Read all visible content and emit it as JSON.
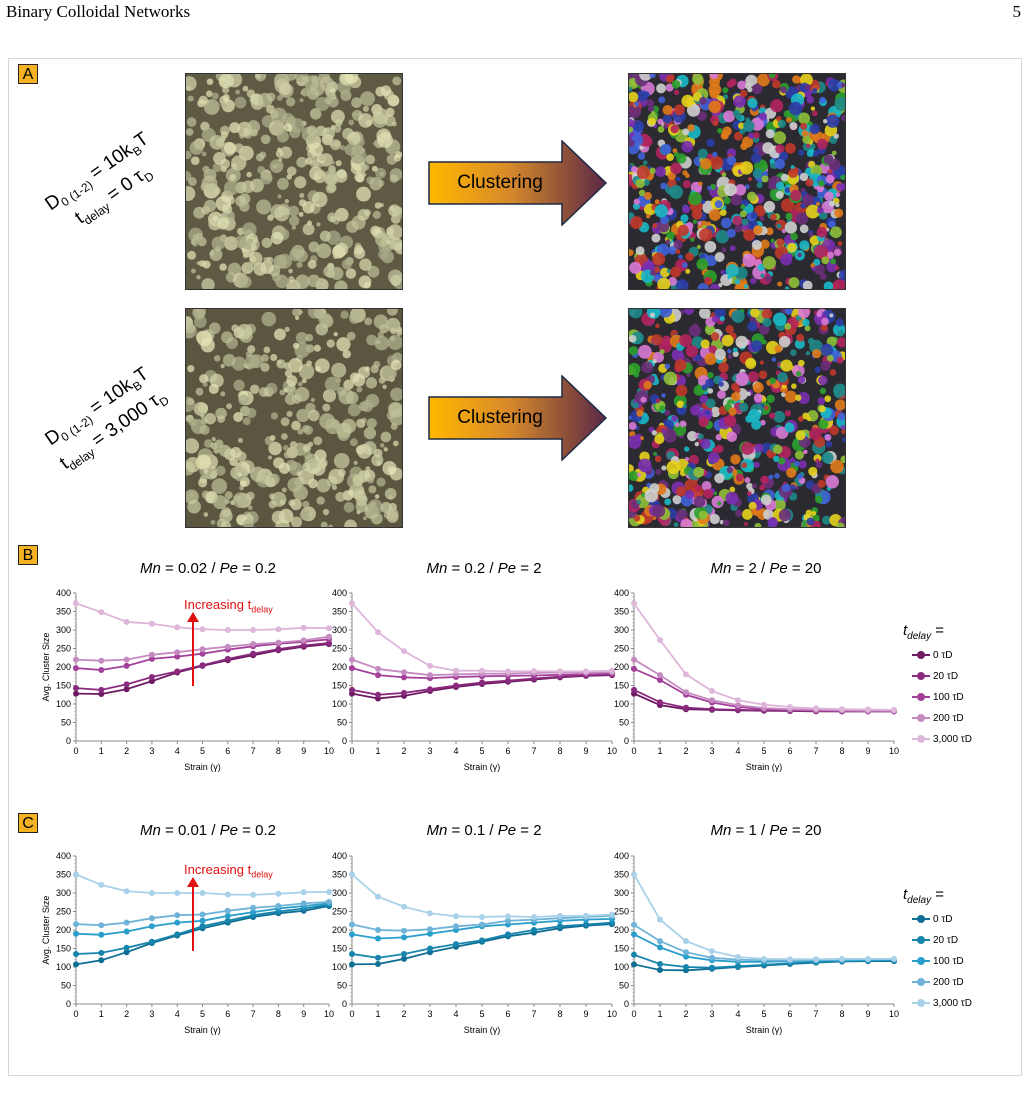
{
  "header": {
    "title": "Binary Colloidal Networks",
    "page": "5"
  },
  "panels": {
    "a": "A",
    "b": "B",
    "c": "C"
  },
  "panel_a": {
    "clustering_label": "Clustering",
    "rows": [
      {
        "line1": "D",
        "line1_sub": "0 (1-2)",
        "line1_rest": " = 10k",
        "line1_sub2": "B",
        "line1_end": "T",
        "line2": "t",
        "line2_sub": "delay",
        "line2_rest": " = 0 τ",
        "line2_sub2": "D"
      },
      {
        "line1": "D",
        "line1_sub": "0 (1-2)",
        "line1_rest": " = 10k",
        "line1_sub2": "B",
        "line1_end": "T",
        "line2": "t",
        "line2_sub": "delay",
        "line2_rest": " = 3,000 τ",
        "line2_sub2": "D"
      }
    ]
  },
  "annotation": {
    "text": "Increasing t",
    "sub": "delay"
  },
  "legend": {
    "title": "t",
    "title_sub": "delay",
    "title_rest": " =",
    "labels": [
      "0 τD",
      "20 τD",
      "100 τD",
      "200 τD",
      "3,000 τD"
    ]
  },
  "colors": {
    "panel_b": [
      "#6e1a63",
      "#8a2a7e",
      "#a3409a",
      "#c58bc0",
      "#ddb6da"
    ],
    "panel_c": [
      "#0e6e94",
      "#1784ac",
      "#2a9fcb",
      "#6fb3d8",
      "#a9d2ea"
    ],
    "accent": "#f4b223",
    "annotation": "#e01010"
  },
  "chart_data": [
    {
      "panel": "B",
      "type": "line",
      "title_left": "Mn",
      "title_mid": " = 0.02 / ",
      "title_pe": "Pe",
      "title_right": " = 0.2",
      "xlabel": "Strain (γ)",
      "ylabel": "Avg. Cluster Size",
      "xlim": [
        0,
        10
      ],
      "ylim": [
        0,
        400
      ],
      "x": [
        0,
        1,
        2,
        3,
        4,
        5,
        6,
        7,
        8,
        9,
        10
      ],
      "series": [
        {
          "name": "0 τD",
          "values": [
            128,
            127,
            140,
            162,
            185,
            203,
            218,
            232,
            245,
            255,
            262
          ]
        },
        {
          "name": "20 τD",
          "values": [
            143,
            138,
            153,
            173,
            188,
            205,
            222,
            236,
            248,
            258,
            265
          ]
        },
        {
          "name": "100 τD",
          "values": [
            197,
            192,
            203,
            222,
            228,
            236,
            247,
            256,
            263,
            268,
            275
          ]
        },
        {
          "name": "200 τD",
          "values": [
            220,
            217,
            220,
            233,
            240,
            248,
            255,
            262,
            266,
            272,
            282
          ]
        },
        {
          "name": "3,000 τD",
          "values": [
            372,
            348,
            322,
            317,
            307,
            302,
            300,
            300,
            302,
            306,
            305
          ]
        }
      ]
    },
    {
      "panel": "B",
      "type": "line",
      "title_left": "Mn",
      "title_mid": " = 0.2 / ",
      "title_pe": "Pe",
      "title_right": " = 2",
      "xlabel": "Strain (γ)",
      "ylabel": "",
      "xlim": [
        0,
        10
      ],
      "ylim": [
        0,
        400
      ],
      "x": [
        0,
        1,
        2,
        3,
        4,
        5,
        6,
        7,
        8,
        9,
        10
      ],
      "series": [
        {
          "name": "0 τD",
          "values": [
            128,
            115,
            122,
            135,
            146,
            154,
            160,
            166,
            172,
            176,
            178
          ]
        },
        {
          "name": "20 τD",
          "values": [
            138,
            125,
            130,
            140,
            150,
            158,
            163,
            169,
            174,
            178,
            180
          ]
        },
        {
          "name": "100 τD",
          "values": [
            197,
            178,
            172,
            170,
            173,
            175,
            176,
            177,
            179,
            180,
            182
          ]
        },
        {
          "name": "200 τD",
          "values": [
            220,
            195,
            186,
            178,
            180,
            182,
            182,
            184,
            185,
            185,
            186
          ]
        },
        {
          "name": "3,000 τD",
          "values": [
            372,
            294,
            243,
            203,
            190,
            190,
            188,
            189,
            188,
            188,
            190
          ]
        }
      ]
    },
    {
      "panel": "B",
      "type": "line",
      "title_left": "Mn",
      "title_mid": " = 2 / ",
      "title_pe": "Pe",
      "title_right": " = 20",
      "xlabel": "Strain (γ)",
      "ylabel": "",
      "xlim": [
        0,
        10
      ],
      "ylim": [
        0,
        400
      ],
      "x": [
        0,
        1,
        2,
        3,
        4,
        5,
        6,
        7,
        8,
        9,
        10
      ],
      "series": [
        {
          "name": "0 τD",
          "values": [
            128,
            97,
            86,
            84,
            83,
            82,
            81,
            80,
            80,
            80,
            80
          ]
        },
        {
          "name": "20 τD",
          "values": [
            138,
            105,
            90,
            86,
            84,
            83,
            82,
            81,
            80,
            80,
            80
          ]
        },
        {
          "name": "100 τD",
          "values": [
            195,
            165,
            125,
            104,
            92,
            86,
            84,
            82,
            81,
            81,
            81
          ]
        },
        {
          "name": "200 τD",
          "values": [
            220,
            178,
            132,
            110,
            97,
            89,
            86,
            84,
            83,
            82,
            82
          ]
        },
        {
          "name": "3,000 τD",
          "values": [
            372,
            273,
            180,
            135,
            110,
            98,
            92,
            88,
            86,
            85,
            84
          ]
        }
      ]
    },
    {
      "panel": "C",
      "type": "line",
      "title_left": "Mn",
      "title_mid": " = 0.01 / ",
      "title_pe": "Pe",
      "title_right": " = 0.2",
      "xlabel": "Strain (γ)",
      "ylabel": "Avg. Cluster Size",
      "xlim": [
        0,
        10
      ],
      "ylim": [
        0,
        400
      ],
      "x": [
        0,
        1,
        2,
        3,
        4,
        5,
        6,
        7,
        8,
        9,
        10
      ],
      "series": [
        {
          "name": "0 τD",
          "values": [
            107,
            118,
            140,
            165,
            185,
            205,
            220,
            235,
            245,
            252,
            265
          ]
        },
        {
          "name": "20 τD",
          "values": [
            135,
            138,
            152,
            168,
            188,
            210,
            225,
            240,
            250,
            258,
            268
          ]
        },
        {
          "name": "100 τD",
          "values": [
            190,
            187,
            196,
            210,
            220,
            225,
            238,
            248,
            258,
            265,
            272
          ]
        },
        {
          "name": "200 τD",
          "values": [
            216,
            213,
            220,
            232,
            240,
            242,
            252,
            260,
            265,
            272,
            276
          ]
        },
        {
          "name": "3,000 τD",
          "values": [
            350,
            322,
            305,
            300,
            300,
            300,
            296,
            295,
            298,
            302,
            303
          ]
        }
      ]
    },
    {
      "panel": "C",
      "type": "line",
      "title_left": "Mn",
      "title_mid": " = 0.1 / ",
      "title_pe": "Pe",
      "title_right": " = 2",
      "xlabel": "Strain (γ)",
      "ylabel": "",
      "xlim": [
        0,
        10
      ],
      "ylim": [
        0,
        400
      ],
      "x": [
        0,
        1,
        2,
        3,
        4,
        5,
        6,
        7,
        8,
        9,
        10
      ],
      "series": [
        {
          "name": "0 τD",
          "values": [
            107,
            108,
            122,
            140,
            155,
            168,
            183,
            193,
            205,
            212,
            216
          ]
        },
        {
          "name": "20 τD",
          "values": [
            135,
            125,
            135,
            150,
            162,
            172,
            188,
            200,
            210,
            215,
            220
          ]
        },
        {
          "name": "100 τD",
          "values": [
            188,
            177,
            180,
            190,
            200,
            210,
            215,
            220,
            225,
            228,
            230
          ]
        },
        {
          "name": "200 τD",
          "values": [
            215,
            200,
            198,
            202,
            210,
            215,
            225,
            228,
            232,
            235,
            238
          ]
        },
        {
          "name": "3,000 τD",
          "values": [
            350,
            290,
            263,
            245,
            237,
            235,
            237,
            235,
            238,
            238,
            242
          ]
        }
      ]
    },
    {
      "panel": "C",
      "type": "line",
      "title_left": "Mn",
      "title_mid": " = 1 / ",
      "title_pe": "Pe",
      "title_right": " = 20",
      "xlabel": "Strain (γ)",
      "ylabel": "",
      "xlim": [
        0,
        10
      ],
      "ylim": [
        0,
        400
      ],
      "x": [
        0,
        1,
        2,
        3,
        4,
        5,
        6,
        7,
        8,
        9,
        10
      ],
      "series": [
        {
          "name": "0 τD",
          "values": [
            107,
            92,
            91,
            95,
            100,
            104,
            108,
            112,
            115,
            116,
            116
          ]
        },
        {
          "name": "20 τD",
          "values": [
            133,
            108,
            100,
            98,
            102,
            106,
            110,
            113,
            116,
            117,
            118
          ]
        },
        {
          "name": "100 τD",
          "values": [
            188,
            153,
            128,
            118,
            114,
            114,
            116,
            117,
            118,
            119,
            120
          ]
        },
        {
          "name": "200 τD",
          "values": [
            214,
            170,
            140,
            125,
            120,
            118,
            118,
            119,
            120,
            121,
            121
          ]
        },
        {
          "name": "3,000 τD",
          "values": [
            350,
            228,
            170,
            143,
            127,
            122,
            121,
            121,
            122,
            122,
            122
          ]
        }
      ]
    }
  ]
}
